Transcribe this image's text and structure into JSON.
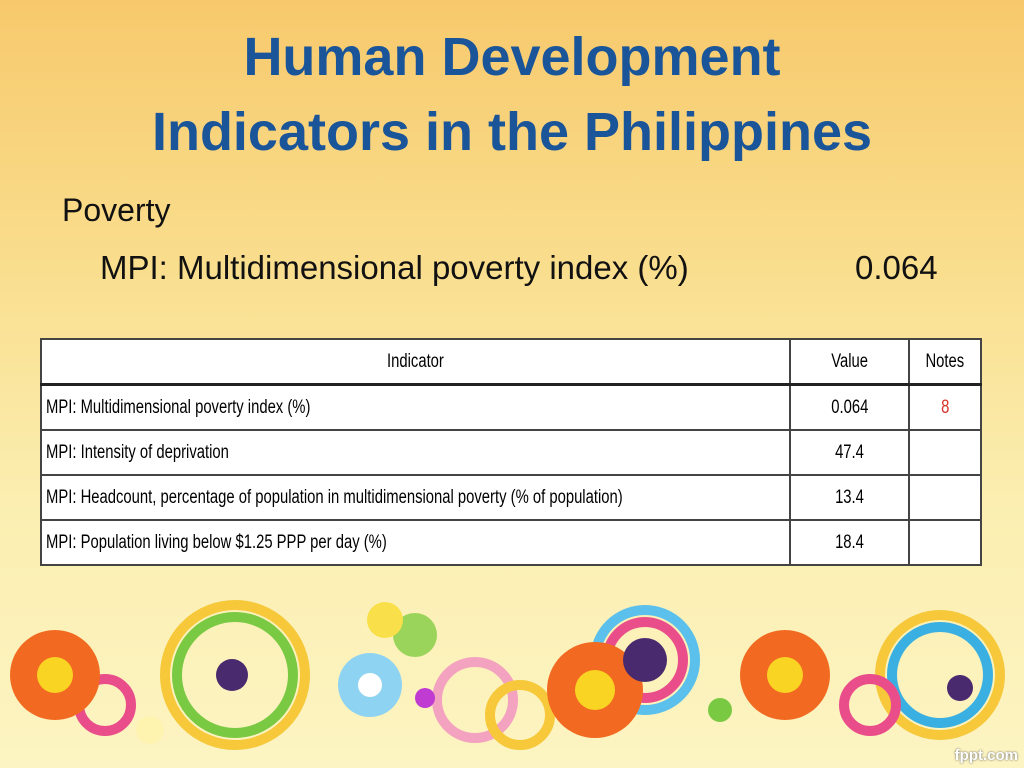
{
  "header": {
    "title_lines": [
      "Human Development",
      "Indicators in the Philippines"
    ]
  },
  "body": {
    "section": "Poverty",
    "item_label": "MPI: Multidimensional poverty index (%)",
    "item_value": "0.064"
  },
  "table": {
    "columns": [
      "Indicator",
      "Value",
      "Notes"
    ],
    "rows": [
      [
        "MPI: Multidimensional poverty index (%)",
        "0.064",
        "8"
      ],
      [
        "MPI: Intensity of deprivation",
        "47.4",
        null
      ],
      [
        "MPI: Headcount, percentage of population in multidimensional poverty (% of population)",
        "13.4",
        null
      ],
      [
        "MPI: Population living below $1.25 PPP per day (%)",
        "18.4",
        null
      ]
    ]
  },
  "footer": {
    "watermark": "fppt.com"
  }
}
